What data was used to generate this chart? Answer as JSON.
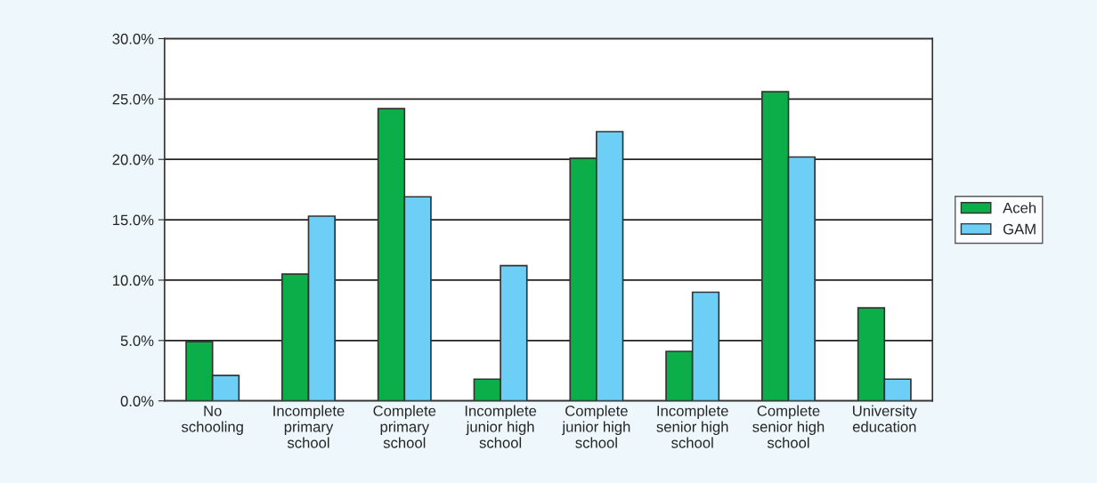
{
  "chart_data": {
    "type": "bar",
    "categories": [
      "No\nschooling",
      "Incomplete\nprimary\nschool",
      "Complete\nprimary\nschool",
      "Incomplete\njunior high\nschool",
      "Complete\njunior high\nschool",
      "Incomplete\nsenior high\nschool",
      "Complete\nsenior high\nschool",
      "University\neducation"
    ],
    "series": [
      {
        "name": "Aceh",
        "color": "#0cae4a",
        "values": [
          4.9,
          10.5,
          24.2,
          1.8,
          20.1,
          4.1,
          25.6,
          7.7
        ]
      },
      {
        "name": "GAM",
        "color": "#6dcff6",
        "values": [
          2.1,
          15.3,
          16.9,
          11.2,
          22.3,
          9.0,
          20.2,
          1.8
        ]
      }
    ],
    "ylim": [
      0,
      30
    ],
    "yticks": [
      {
        "value": 0,
        "label": "0.0%"
      },
      {
        "value": 5,
        "label": "5.0%"
      },
      {
        "value": 10,
        "label": "10.0%"
      },
      {
        "value": 15,
        "label": "15.0%"
      },
      {
        "value": 20,
        "label": "20.0%"
      },
      {
        "value": 25,
        "label": "25.0%"
      },
      {
        "value": 30,
        "label": "30.0%"
      }
    ],
    "grid": "y",
    "legend": "right"
  }
}
